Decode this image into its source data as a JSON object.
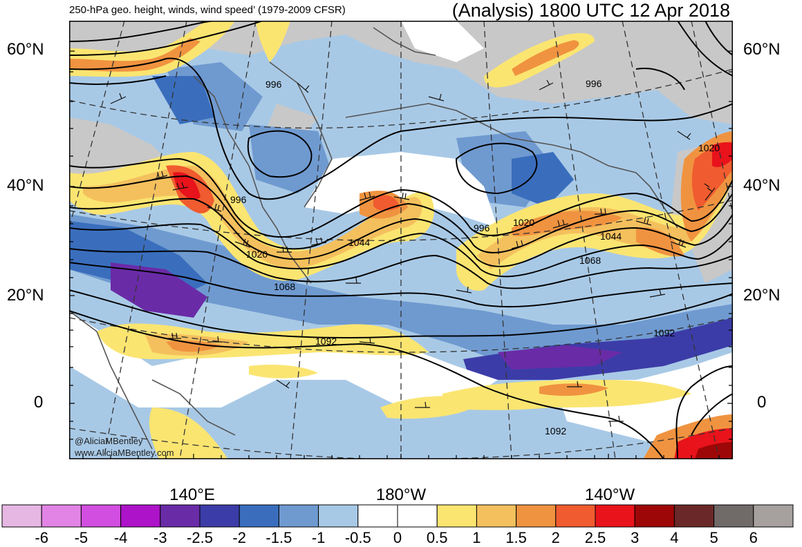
{
  "title_left": "250-hPa geo. height, winds, wind speed’ (1979-2009 CFSR)",
  "title_right": "(Analysis) 1800 UTC 12 Apr 2018",
  "lat_labels": [
    "60°N",
    "40°N",
    "20°N",
    "0"
  ],
  "lon_labels": [
    "140°E",
    "180°W",
    "140°W"
  ],
  "contour_labels": [
    "996",
    "996",
    "996",
    "996",
    "1020",
    "1020",
    "1020",
    "1044",
    "1044",
    "1068",
    "1068",
    "1092",
    "1092",
    "1092"
  ],
  "credits": [
    "@AliciaMBentley",
    "www.AliciaMBentley.com"
  ],
  "colorbar": {
    "labels": [
      "-6",
      "-5",
      "-4",
      "-3",
      "-2.5",
      "-2",
      "-1.5",
      "-1",
      "-0.5",
      "0",
      "0.5",
      "1",
      "1.5",
      "2",
      "2.5",
      "3",
      "4",
      "5",
      "6"
    ],
    "colors": [
      "#e7b7e4",
      "#e184e5",
      "#d24ee0",
      "#ad13c9",
      "#6a2ba7",
      "#3c3ca8",
      "#3a6ebd",
      "#6f9ad0",
      "#a8c9e6",
      "#ffffff",
      "#ffffff",
      "#fbe571",
      "#f4c05d",
      "#f09340",
      "#f05b2f",
      "#e8131b",
      "#9e0707",
      "#6b2828",
      "#706a68",
      "#a6a09f"
    ]
  }
}
